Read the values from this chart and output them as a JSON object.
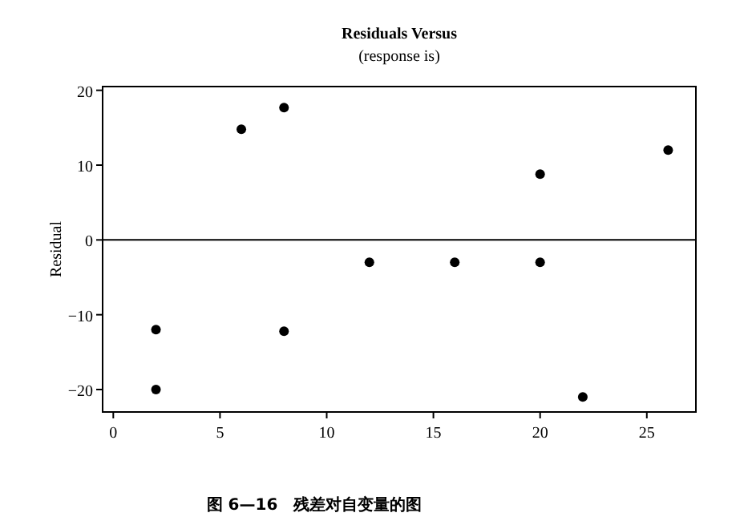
{
  "chart_data": {
    "type": "scatter",
    "title": "Residuals Versus",
    "subtitle": "(response is)",
    "ylabel": "Residual",
    "x": [
      2,
      2,
      6,
      8,
      8,
      12,
      16,
      20,
      20,
      22,
      26
    ],
    "series": [
      {
        "color": "#000000",
        "values": [
          -12,
          -20,
          14.8,
          17.7,
          -12.2,
          -3,
          -3,
          8.8,
          -3,
          -21,
          12
        ]
      }
    ],
    "xlim": [
      -0.5,
      27.3
    ],
    "xticks": [
      0,
      5,
      10,
      15,
      20,
      25
    ],
    "ylim": [
      -23,
      20.5
    ],
    "yticks": [
      -20,
      -10,
      0,
      10,
      20
    ],
    "ref_lines": [
      {
        "axis": "y",
        "value": 0,
        "color": "#000000"
      }
    ],
    "marker": "circle",
    "grid": false,
    "annotations": [
      "图 6—16　残差对自变量的图"
    ]
  }
}
